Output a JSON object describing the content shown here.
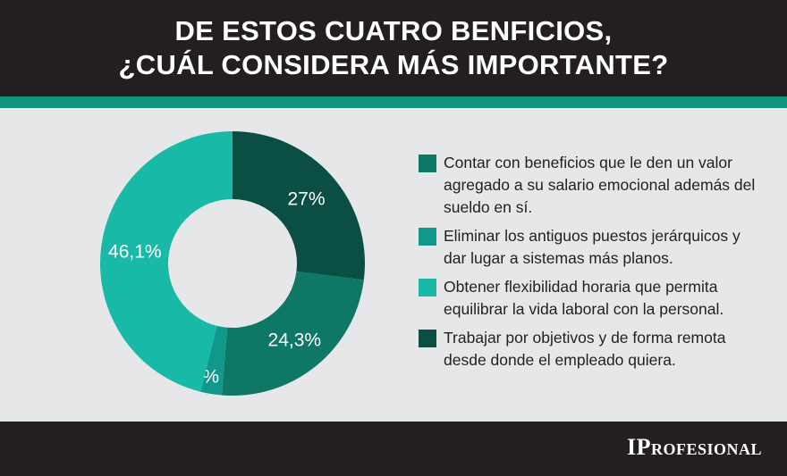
{
  "title_lines": [
    "DE ESTOS CUATRO BENFICIOS,",
    "¿CUÁL CONSIDERA MÁS IMPORTANTE?"
  ],
  "logo": "IProfesional",
  "chart_data": {
    "type": "pie",
    "donut": true,
    "start": "top, clockwise",
    "slices": [
      {
        "name": "Trabajar por objetivos y de forma remota desde donde el empleado quiera.",
        "value": 27,
        "label": "27%",
        "color": "#0b4f44"
      },
      {
        "name": "Contar con beneficios que le den un valor agregado a su salario emocional además del sueldo en sí.",
        "value": 24.3,
        "label": "24,3%",
        "color": "#0e7766"
      },
      {
        "name": "Eliminar los antiguos puestos jerárquicos y dar lugar a sistemas más planos.",
        "value": 2.6,
        "label": "2,6%",
        "color": "#10998a"
      },
      {
        "name": "Obtener flexibilidad horaria que permita equilibrar la vida laboral con la personal.",
        "value": 46.1,
        "label": "46,1%",
        "color": "#19b9a8"
      }
    ],
    "legend": [
      {
        "text": "Contar con beneficios que le den un valor agregado a su salario emocional además del sueldo en sí.",
        "color": "#0e7766"
      },
      {
        "text": "Eliminar los antiguos puestos jerárquicos y dar lugar a sistemas más planos.",
        "color": "#10998a"
      },
      {
        "text": "Obtener flexibilidad horaria que permita equilibrar la vida laboral con la personal.",
        "color": "#19b9a8"
      },
      {
        "text": "Trabajar por objetivos y de forma remota desde donde el empleado quiera.",
        "color": "#0b4f44"
      }
    ],
    "legend_position": "right"
  }
}
